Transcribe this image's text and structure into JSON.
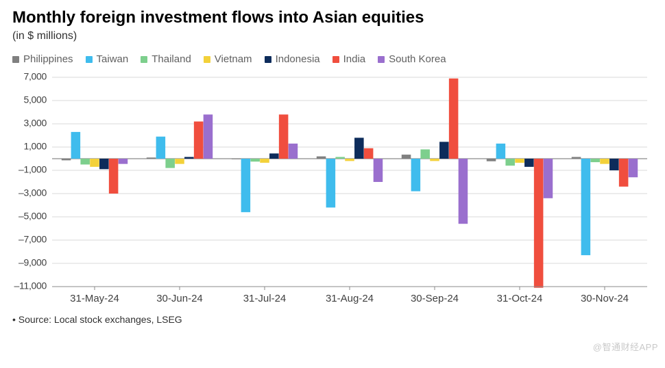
{
  "title": "Monthly foreign investment flows into Asian equities",
  "subtitle": "(in $ millions)",
  "footer": "• Source: Local stock exchanges, LSEG",
  "watermark": "@智通财经APP",
  "chart": {
    "type": "bar",
    "background_color": "#ffffff",
    "grid_color": "#d9d9d9",
    "axis_color": "#404040",
    "title_fontsize": 24,
    "subtitle_fontsize": 16,
    "label_fontsize": 14,
    "series": [
      {
        "name": "Philippines",
        "color": "#808080"
      },
      {
        "name": "Taiwan",
        "color": "#3fbced"
      },
      {
        "name": "Thailand",
        "color": "#7dcf8d"
      },
      {
        "name": "Vietnam",
        "color": "#f3d13a"
      },
      {
        "name": "Indonesia",
        "color": "#0d2c5b"
      },
      {
        "name": "India",
        "color": "#f04e3e"
      },
      {
        "name": "South Korea",
        "color": "#9a6fce"
      }
    ],
    "categories": [
      "31-May-24",
      "30-Jun-24",
      "31-Jul-24",
      "31-Aug-24",
      "30-Sep-24",
      "31-Oct-24",
      "30-Nov-24"
    ],
    "values": [
      [
        -140,
        2300,
        -500,
        -700,
        -900,
        -3000,
        -450
      ],
      [
        100,
        1900,
        -800,
        -450,
        150,
        3200,
        3800
      ],
      [
        -50,
        -4600,
        -250,
        -350,
        450,
        3800,
        1300
      ],
      [
        200,
        -4200,
        150,
        -200,
        1800,
        900,
        -2000
      ],
      [
        350,
        -2800,
        800,
        -200,
        1450,
        6900,
        -5600
      ],
      [
        -220,
        1300,
        -600,
        -350,
        -700,
        -11100,
        -3400
      ],
      [
        150,
        -8300,
        -300,
        -450,
        -1000,
        -2400,
        -1600
      ]
    ],
    "ylim": [
      -11000,
      7000
    ],
    "ytick_step": 2000,
    "yticks": [
      7000,
      5000,
      3000,
      1000,
      -1000,
      -3000,
      -5000,
      -7000,
      -9000,
      -11000
    ],
    "bar_group_gap": 0.22,
    "bar_gap": 0.02
  }
}
